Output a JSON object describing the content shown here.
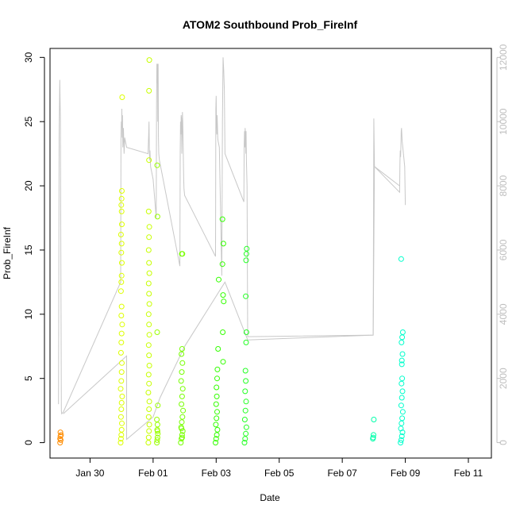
{
  "chart_data": {
    "type": "scatter",
    "title": "ATOM2 Southbound Prob_FireInf",
    "xlabel": "Date",
    "ylabel": "Prob_FireInf",
    "x_ticks": [
      "Jan 30",
      "Feb 01",
      "Feb 03",
      "Feb 05",
      "Feb 07",
      "Feb 09",
      "Feb 11"
    ],
    "x_tick_days": [
      1,
      3,
      5,
      7,
      9,
      11,
      13
    ],
    "xlim_days": [
      -0.27,
      13.73
    ],
    "ylim": [
      -1.2,
      30.7
    ],
    "y_ticks": [
      0,
      5,
      10,
      15,
      20,
      25,
      30
    ],
    "y2lim": [
      -480,
      12280
    ],
    "y2_ticks": [
      0,
      2000,
      4000,
      6000,
      8000,
      10000,
      12000
    ],
    "y2_color": "#bebebe",
    "marker": "open-circle",
    "day_note": "x is day of period, Jan 29 = 0",
    "series": [
      {
        "color": "#ff8c00",
        "x": [
          0.05,
          0.05,
          0.06,
          0.06,
          0.07,
          0.08
        ],
        "y": [
          0,
          0.3,
          0.5,
          0.8,
          0.2,
          0.6
        ]
      },
      {
        "color": "#ddff00",
        "x": [
          1.97,
          1.98,
          1.99,
          2.0,
          2.01,
          1.98,
          1.99,
          2.0,
          2.02,
          1.97,
          1.99,
          2.0,
          2.01,
          1.98,
          1.99,
          2.0,
          2.02,
          1.99,
          2.0,
          1.98,
          2.0,
          2.01,
          1.99,
          2.0,
          1.98,
          2.01,
          2.0,
          1.99,
          2.0,
          2.01,
          2.02,
          1.99
        ],
        "y": [
          0,
          0.3,
          0.6,
          1.0,
          1.5,
          2.0,
          2.6,
          3.1,
          3.6,
          4.2,
          4.8,
          5.5,
          6.2,
          7.0,
          7.8,
          8.5,
          9.2,
          9.9,
          10.6,
          11.8,
          13.0,
          14.0,
          14.8,
          15.5,
          16.2,
          17.0,
          18.0,
          18.5,
          19.0,
          19.6,
          26.9,
          12.5
        ]
      },
      {
        "color": "#c8ff00",
        "x": [
          2.85,
          2.86,
          2.87,
          2.88,
          2.86,
          2.87,
          2.88,
          2.85,
          2.87,
          2.86,
          2.88,
          2.87,
          2.86,
          2.88,
          2.87,
          2.86,
          2.88,
          2.87,
          2.86,
          2.88,
          2.87,
          2.86,
          2.87,
          2.88,
          2.86,
          2.87,
          2.87,
          2.88
        ],
        "y": [
          0,
          0.4,
          0.9,
          1.4,
          2.0,
          2.6,
          3.2,
          3.9,
          4.6,
          5.3,
          6.0,
          6.8,
          7.6,
          8.4,
          9.2,
          10.0,
          10.8,
          11.6,
          12.4,
          13.2,
          14.0,
          15.0,
          16.0,
          16.8,
          18.0,
          22.0,
          27.4,
          29.8
        ]
      },
      {
        "color": "#99ff00",
        "x": [
          3.12,
          3.13,
          3.14,
          3.15,
          3.13,
          3.14,
          3.12,
          3.15,
          3.13,
          3.14,
          3.13,
          3.14
        ],
        "y": [
          0,
          0.2,
          0.4,
          0.7,
          1.0,
          1.4,
          1.8,
          2.9,
          8.6,
          17.6,
          21.6,
          0.9
        ]
      },
      {
        "color": "#77ff00",
        "x": [
          3.88,
          3.9,
          3.92,
          3.94,
          3.89,
          3.91,
          3.93,
          3.95,
          3.9,
          3.92,
          3.94,
          3.89,
          3.91,
          3.93,
          3.9,
          3.92,
          3.91,
          3.93,
          3.9,
          3.92
        ],
        "y": [
          0,
          0.3,
          0.6,
          0.9,
          1.2,
          1.6,
          2.0,
          2.5,
          3.0,
          3.6,
          4.2,
          4.8,
          5.5,
          6.2,
          6.9,
          7.3,
          14.7,
          14.7,
          1.1,
          0.4
        ]
      },
      {
        "color": "#33ff00",
        "x": [
          4.98,
          5.0,
          5.02,
          5.04,
          4.99,
          5.01,
          5.03,
          5.0,
          5.02,
          5.01,
          5.03,
          5.04,
          5.06,
          5.08,
          5.2,
          5.22,
          5.24,
          5.21,
          5.23,
          5.2,
          5.22
        ],
        "y": [
          0,
          0.3,
          0.6,
          1.0,
          1.4,
          1.9,
          2.4,
          3.0,
          3.6,
          4.3,
          5.0,
          5.7,
          7.3,
          12.7,
          13.9,
          11.5,
          11.0,
          8.6,
          15.5,
          17.4,
          6.3
        ]
      },
      {
        "color": "#22ff22",
        "x": [
          5.9,
          5.92,
          5.94,
          5.96,
          5.91,
          5.93,
          5.95,
          5.92,
          5.94,
          5.93,
          5.95,
          5.96,
          5.94,
          5.95,
          5.96,
          5.97
        ],
        "y": [
          0,
          0.3,
          0.7,
          1.2,
          1.8,
          2.5,
          3.2,
          4.0,
          4.8,
          5.6,
          7.8,
          8.6,
          11.4,
          14.2,
          14.7,
          15.1
        ]
      },
      {
        "color": "#00ffaa",
        "x": [
          9.97,
          9.98,
          9.99,
          10.0
        ],
        "y": [
          0.3,
          0.4,
          0.6,
          1.8
        ]
      },
      {
        "color": "#00ffcc",
        "x": [
          10.85,
          10.87,
          10.89,
          10.91,
          10.86,
          10.88,
          10.9,
          10.92,
          10.87,
          10.89,
          10.91,
          10.88,
          10.9,
          10.89,
          10.91,
          10.88,
          10.9,
          10.92,
          10.87,
          10.89
        ],
        "y": [
          0,
          0.2,
          0.5,
          0.8,
          1.1,
          1.5,
          1.9,
          2.4,
          2.9,
          3.5,
          4.0,
          4.6,
          5.0,
          6.1,
          6.9,
          7.8,
          8.2,
          8.6,
          14.3,
          6.4
        ]
      }
    ],
    "secondary_line": {
      "color": "#c8c8c8",
      "x": [
        0.0,
        0.02,
        0.04,
        0.06,
        0.08,
        0.09,
        0.1,
        0.15,
        1.97,
        1.98,
        1.99,
        2.0,
        2.01,
        2.02,
        2.03,
        2.04,
        2.06,
        2.08,
        2.1,
        2.12,
        2.14,
        2.16,
        2.84,
        2.85,
        2.86,
        2.87,
        2.88,
        2.89,
        2.9,
        2.92,
        2.94,
        2.96,
        2.98,
        3.0,
        3.1,
        3.11,
        3.12,
        3.13,
        3.14,
        3.15,
        3.16,
        3.17,
        3.18,
        3.2,
        3.22,
        3.85,
        3.86,
        3.87,
        3.88,
        3.89,
        3.9,
        3.91,
        3.92,
        3.93,
        3.94,
        3.95,
        3.96,
        3.97,
        3.98,
        4.0,
        4.98,
        4.99,
        5.0,
        5.01,
        5.02,
        5.03,
        5.04,
        5.05,
        5.06,
        5.08,
        5.1,
        5.18,
        5.2,
        5.22,
        5.24,
        5.26,
        5.28,
        5.88,
        5.89,
        5.9,
        5.91,
        5.92,
        5.93,
        5.94,
        5.95,
        5.96,
        5.97,
        5.98,
        6.0,
        9.98,
        10.0,
        10.02,
        10.82,
        10.83,
        10.84,
        10.85,
        10.86,
        10.87,
        10.88,
        10.89,
        10.9,
        10.92,
        10.94,
        10.96,
        10.98,
        11.0
      ],
      "y": [
        1200,
        9600,
        11300,
        10000,
        4000,
        1000,
        900,
        950,
        5000,
        9500,
        10000,
        9800,
        10400,
        9500,
        10200,
        9200,
        9800,
        9000,
        9500,
        9400,
        9300,
        9200,
        9000,
        9300,
        9600,
        10000,
        9200,
        8800,
        9100,
        8600,
        8500,
        8400,
        8300,
        8200,
        7000,
        10500,
        11800,
        11200,
        11800,
        10000,
        11800,
        9500,
        9000,
        8800,
        8700,
        5500,
        9000,
        10000,
        9600,
        10200,
        10100,
        9000,
        9600,
        10300,
        10000,
        9500,
        8800,
        8200,
        7900,
        7700,
        5800,
        10400,
        10800,
        10000,
        9600,
        10200,
        9900,
        9500,
        9400,
        9300,
        9200,
        5200,
        10000,
        12000,
        11600,
        11000,
        9000,
        7500,
        9300,
        9700,
        9200,
        9800,
        9600,
        9000,
        9700,
        8800,
        8400,
        8000,
        3300,
        3350,
        10100,
        8600,
        7800,
        8700,
        9100,
        8900,
        9200,
        9700,
        9800,
        9600,
        9400,
        9200,
        9000,
        8800,
        8600,
        7400
      ]
    },
    "connector_line": {
      "color": "#c8c8c8",
      "x": [
        0.15,
        2.16,
        2.16,
        3.0,
        3.22,
        4.0,
        5.28,
        6.0,
        9.98,
        10.02,
        10.82
      ],
      "y": [
        900,
        2700,
        100,
        800,
        1400,
        3000,
        5000,
        3200,
        3350,
        8600,
        8000
      ]
    }
  }
}
